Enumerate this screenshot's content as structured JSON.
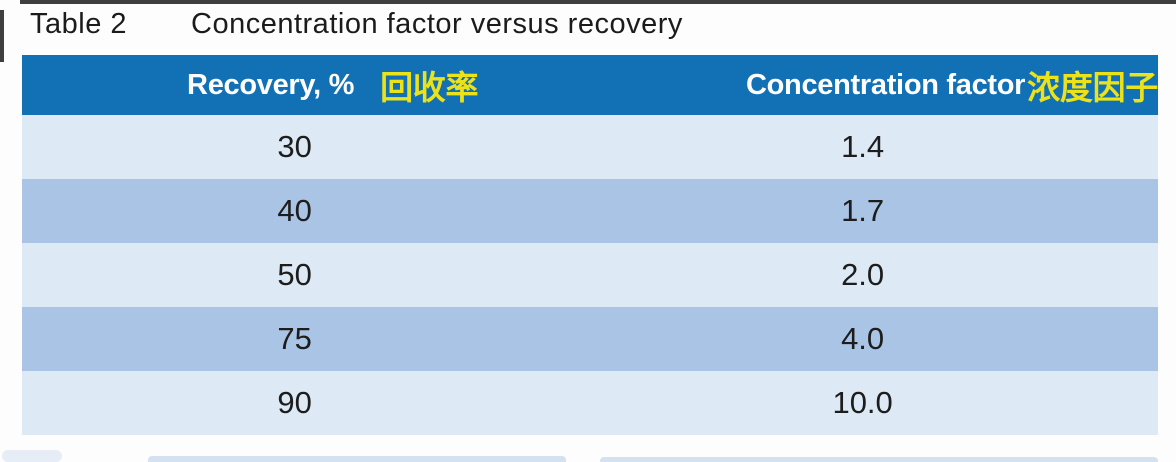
{
  "caption": {
    "label": "Table 2",
    "title": "Concentration factor versus recovery"
  },
  "table": {
    "columns": [
      {
        "en": "Recovery, %",
        "zh": "回收率"
      },
      {
        "en": "Concentration factor",
        "zh": "浓度因子"
      }
    ],
    "rows": [
      {
        "recovery": "30",
        "factor": "1.4"
      },
      {
        "recovery": "40",
        "factor": "1.7"
      },
      {
        "recovery": "50",
        "factor": "2.0"
      },
      {
        "recovery": "75",
        "factor": "4.0"
      },
      {
        "recovery": "90",
        "factor": "10.0"
      }
    ]
  },
  "chart_data": {
    "type": "table",
    "title": "Concentration factor versus recovery",
    "columns": [
      "Recovery, % 回收率",
      "Concentration factor 浓度因子"
    ],
    "x": [
      30,
      40,
      50,
      75,
      90
    ],
    "values": [
      1.4,
      1.7,
      2.0,
      4.0,
      10.0
    ]
  },
  "colors": {
    "header_bg": "#1271b5",
    "row_dark": "#aac4e5",
    "row_light": "#dde9f4",
    "accent_yellow": "#ece219",
    "header_text": "#ffffff",
    "body_text": "#1d1d1d",
    "frame_line": "#3f3f3f"
  }
}
